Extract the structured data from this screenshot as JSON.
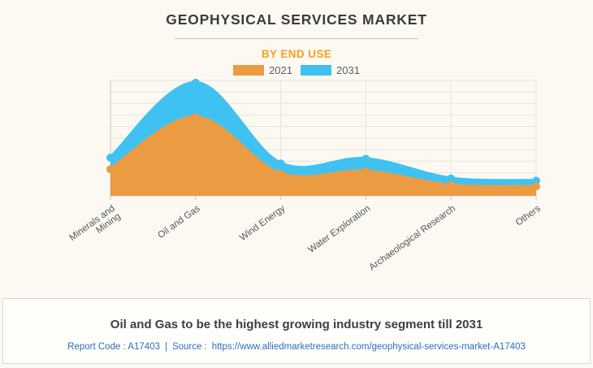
{
  "header": {
    "title": "GEOPHYSICAL SERVICES MARKET",
    "subtitle": "BY END USE"
  },
  "chart_data": {
    "type": "area",
    "title": "GEOPHYSICAL SERVICES MARKET",
    "subtitle": "BY END USE",
    "categories": [
      "Minerals and Mining",
      "Oil and Gas",
      "Wind Energy",
      "Water Exploration",
      "Archaeological Research",
      "Others"
    ],
    "category_lines": [
      [
        "Minerals and",
        "Mining"
      ],
      [
        "Oil and Gas"
      ],
      [
        "Wind Energy"
      ],
      [
        "Water Exploration"
      ],
      [
        "Archaeological Research"
      ],
      [
        "Others"
      ]
    ],
    "series": [
      {
        "name": "2021",
        "color": "#eb9c42",
        "values": [
          23,
          68,
          19,
          21,
          9,
          8
        ]
      },
      {
        "name": "2031",
        "color": "#3fc2f1",
        "values": [
          33,
          98,
          28,
          32,
          15,
          13
        ]
      }
    ],
    "ylabel": "",
    "xlabel": "",
    "ylim": [
      0,
      100
    ],
    "y_grid_step": 10,
    "y_axis_labels_shown": false,
    "values_are_relative_estimates": true,
    "grid": true,
    "legend_position": "top",
    "legend_entries": [
      "2021",
      "2031"
    ]
  },
  "footer": {
    "caption": "Oil and Gas to be the highest growing industry segment till 2031",
    "report_code": "Report Code : A17403",
    "separator": "|",
    "source_label": "Source :",
    "source_url": "https://www.alliedmarketresearch.com/geophysical-services-market-A17403"
  },
  "colors": {
    "background": "#fbf9f2",
    "accent_orange": "#f7a022",
    "series_2021": "#eb9c42",
    "series_2031": "#3fc2f1",
    "gridline": "#e8e4db",
    "axis": "#ccc8c0",
    "link_blue": "#2d6fc0"
  }
}
